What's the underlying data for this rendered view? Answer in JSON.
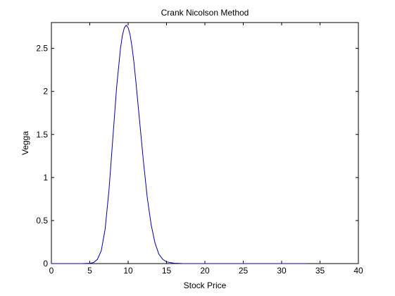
{
  "chart_data": {
    "type": "line",
    "title": "Crank Nicolson Method",
    "xlabel": "Stock Price",
    "ylabel": "Vegga",
    "xlim": [
      0,
      40
    ],
    "ylim": [
      0,
      2.8
    ],
    "xticks": [
      0,
      5,
      10,
      15,
      20,
      25,
      30,
      35,
      40
    ],
    "yticks": [
      0,
      0.5,
      1,
      1.5,
      2,
      2.5
    ],
    "grid": false,
    "line_color": "#0000aa",
    "series": [
      {
        "x": [
          0,
          1,
          2,
          3,
          4,
          5,
          5.5,
          6,
          6.5,
          7,
          7.5,
          8,
          8.5,
          9,
          9.25,
          9.5,
          9.75,
          10,
          10.25,
          10.5,
          10.75,
          11,
          11.5,
          12,
          12.5,
          13,
          13.5,
          14,
          14.5,
          15,
          16,
          17,
          18,
          20,
          25,
          30,
          33.3
        ],
        "y": [
          0,
          0,
          0,
          0,
          0,
          0.003,
          0.012,
          0.05,
          0.15,
          0.4,
          0.85,
          1.45,
          2.05,
          2.5,
          2.65,
          2.74,
          2.77,
          2.74,
          2.66,
          2.52,
          2.34,
          2.12,
          1.65,
          1.18,
          0.76,
          0.45,
          0.24,
          0.11,
          0.05,
          0.02,
          0.004,
          0.001,
          0,
          0,
          0,
          0,
          0
        ]
      }
    ]
  }
}
